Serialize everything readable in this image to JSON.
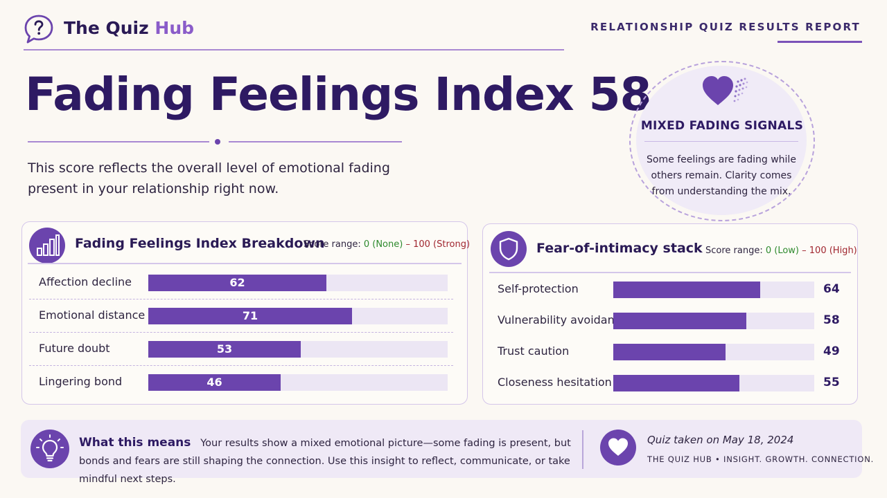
{
  "header": {
    "brand_main": "The Quiz",
    "brand_accent": "Hub",
    "report_label": "RELATIONSHIP QUIZ RESULTS REPORT"
  },
  "hero": {
    "title": "Fading Feelings Index 58",
    "subtitle": "This score reflects the overall level of emotional fading present in your relationship right now."
  },
  "badge": {
    "title": "MIXED FADING SIGNALS",
    "text": "Some feelings are fading while others remain. Clarity comes from understanding the mix."
  },
  "breakdown": {
    "title": "Fading Feelings Index Breakdown",
    "range_prefix": "Score range: ",
    "range_low": "0 (None)",
    "range_sep": " – ",
    "range_high": "100 (Strong)",
    "rows": [
      {
        "label": "Affection decline",
        "value": 62
      },
      {
        "label": "Emotional distance",
        "value": 71
      },
      {
        "label": "Future doubt",
        "value": 53
      },
      {
        "label": "Lingering bond",
        "value": 46
      }
    ]
  },
  "intimacy": {
    "title": "Fear-of-intimacy stack",
    "range_prefix": "Score range: ",
    "range_low": "0 (Low)",
    "range_sep": " – ",
    "range_high": "100 (High)",
    "rows": [
      {
        "label": "Self-protection",
        "value": 64
      },
      {
        "label": "Vulnerability avoidance",
        "value": 58
      },
      {
        "label": "Trust caution",
        "value": 49
      },
      {
        "label": "Closeness hesitation",
        "value": 55
      }
    ]
  },
  "meaning": {
    "title": "What this means",
    "text": "Your results show a mixed emotional picture—some fading is present, but bonds and fears are still shaping the connection. Use this insight to reflect, communicate, or take mindful next steps."
  },
  "footer": {
    "taken": "Quiz taken on May 18, 2024",
    "tagline": "THE QUIZ HUB • INSIGHT. GROWTH. CONNECTION."
  },
  "colors": {
    "accent": "#6b44ad",
    "brand_accent": "#8a5cc9",
    "title": "#2e1a63",
    "range_low": "#2e8a2e",
    "range_high": "#a0262f",
    "background": "#fbf8f3"
  }
}
